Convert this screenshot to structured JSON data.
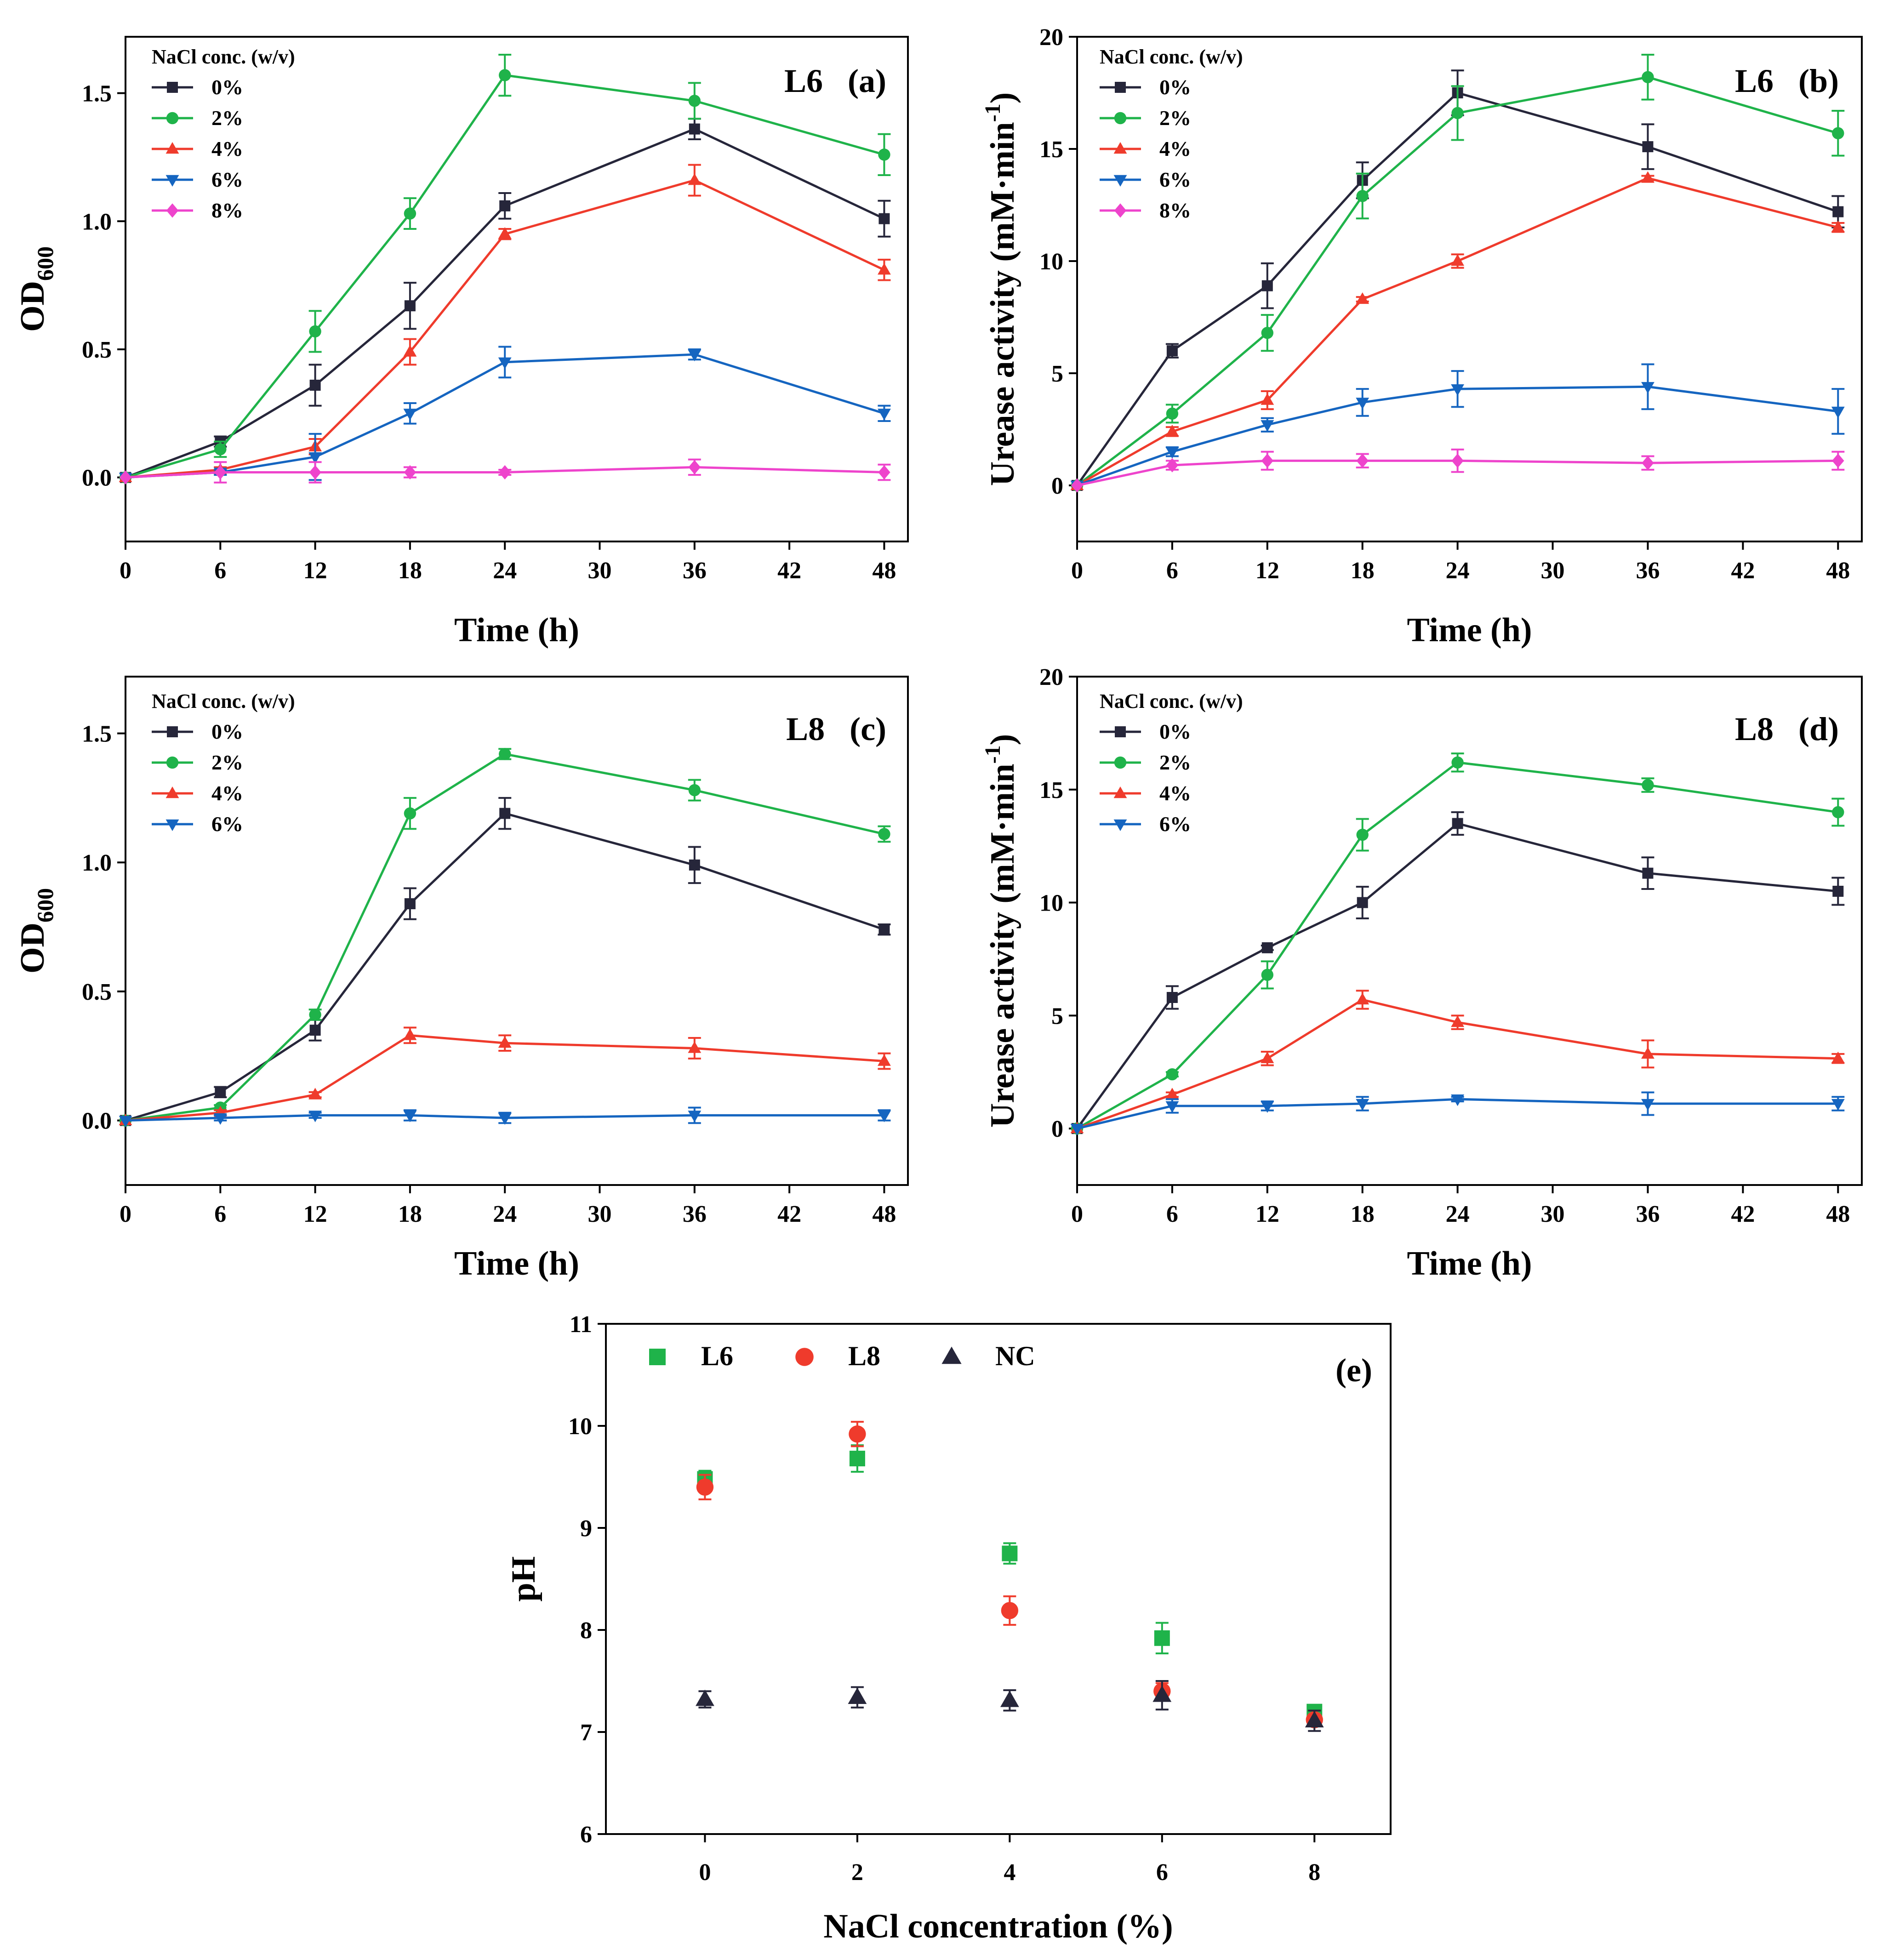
{
  "colors": {
    "black": "#26263a",
    "green": "#1fb34a",
    "red": "#ef3b2c",
    "blue": "#1565c0",
    "magenta": "#ee44cc",
    "e_green": "#1fb34a",
    "e_red": "#ef3b2c",
    "e_black": "#26263a"
  },
  "chart_data": [
    {
      "id": "a",
      "type": "line",
      "panel_label": "L6   (a)",
      "legend_title": "NaCl conc. (w/v)",
      "xlabel": "Time (h)",
      "ylabel": "OD",
      "ylabel_sub": "600",
      "xlim": [
        0,
        49.5
      ],
      "ylim": [
        -0.25,
        1.72
      ],
      "xticks": [
        0,
        6,
        12,
        18,
        24,
        30,
        36,
        42,
        48
      ],
      "yticks": [
        0.0,
        0.5,
        1.0,
        1.5
      ],
      "ytick_labels": [
        "0.0",
        "0.5",
        "1.0",
        "1.5"
      ],
      "x": [
        0,
        6,
        12,
        18,
        24,
        36,
        48
      ],
      "series": [
        {
          "name": "0%",
          "color": "black",
          "marker": "square",
          "values": [
            0,
            0.14,
            0.36,
            0.67,
            1.06,
            1.36,
            1.01
          ],
          "errors": [
            0,
            0.02,
            0.08,
            0.09,
            0.05,
            0.04,
            0.07
          ]
        },
        {
          "name": "2%",
          "color": "green",
          "marker": "circle",
          "values": [
            0,
            0.11,
            0.57,
            1.03,
            1.57,
            1.47,
            1.26
          ],
          "errors": [
            0,
            0.03,
            0.08,
            0.06,
            0.08,
            0.07,
            0.08
          ]
        },
        {
          "name": "4%",
          "color": "red",
          "marker": "triangle-up",
          "values": [
            0,
            0.03,
            0.12,
            0.49,
            0.95,
            1.16,
            0.81
          ],
          "errors": [
            0,
            0.01,
            0.03,
            0.05,
            0.02,
            0.06,
            0.04
          ]
        },
        {
          "name": "6%",
          "color": "blue",
          "marker": "triangle-down",
          "values": [
            0,
            0.02,
            0.08,
            0.25,
            0.45,
            0.48,
            0.25
          ],
          "errors": [
            0,
            0.01,
            0.09,
            0.04,
            0.06,
            0.02,
            0.03
          ]
        },
        {
          "name": "8%",
          "color": "magenta",
          "marker": "diamond",
          "values": [
            0,
            0.02,
            0.02,
            0.02,
            0.02,
            0.04,
            0.02
          ],
          "errors": [
            0,
            0.04,
            0.04,
            0.02,
            0.01,
            0.03,
            0.03
          ]
        }
      ]
    },
    {
      "id": "b",
      "type": "line",
      "panel_label": "L6   (b)",
      "legend_title": "NaCl conc. (w/v)",
      "xlabel": "Time (h)",
      "ylabel": "Urease activity (mM·min",
      "ylabel_sup": "-1",
      "ylabel_tail": ")",
      "xlim": [
        0,
        49.5
      ],
      "ylim": [
        -2.5,
        20
      ],
      "xticks": [
        0,
        6,
        12,
        18,
        24,
        30,
        36,
        42,
        48
      ],
      "yticks": [
        0,
        5,
        10,
        15,
        20
      ],
      "ytick_labels": [
        "0",
        "5",
        "10",
        "15",
        "20"
      ],
      "x": [
        0,
        6,
        12,
        18,
        24,
        36,
        48
      ],
      "series": [
        {
          "name": "0%",
          "color": "black",
          "marker": "square",
          "values": [
            0,
            6.0,
            8.9,
            13.6,
            17.5,
            15.1,
            12.2
          ],
          "errors": [
            0,
            0.3,
            1.0,
            0.8,
            1.0,
            1.0,
            0.7
          ]
        },
        {
          "name": "2%",
          "color": "green",
          "marker": "circle",
          "values": [
            0,
            3.2,
            6.8,
            12.9,
            16.6,
            18.2,
            15.7
          ],
          "errors": [
            0,
            0.4,
            0.8,
            1.0,
            1.2,
            1.0,
            1.0
          ]
        },
        {
          "name": "4%",
          "color": "red",
          "marker": "triangle-up",
          "values": [
            0,
            2.4,
            3.8,
            8.3,
            10.0,
            13.7,
            11.5
          ],
          "errors": [
            0,
            0.2,
            0.4,
            0.1,
            0.3,
            0.1,
            0.2
          ]
        },
        {
          "name": "6%",
          "color": "blue",
          "marker": "triangle-down",
          "values": [
            0,
            1.5,
            2.7,
            3.7,
            4.3,
            4.4,
            3.3
          ],
          "errors": [
            0,
            0.2,
            0.3,
            0.6,
            0.8,
            1.0,
            1.0
          ]
        },
        {
          "name": "8%",
          "color": "magenta",
          "marker": "diamond",
          "values": [
            0,
            0.9,
            1.1,
            1.1,
            1.1,
            1.0,
            1.1
          ],
          "errors": [
            0,
            0.2,
            0.4,
            0.3,
            0.5,
            0.3,
            0.4
          ]
        }
      ]
    },
    {
      "id": "c",
      "type": "line",
      "panel_label": "L8   (c)",
      "legend_title": "NaCl conc. (w/v)",
      "xlabel": "Time (h)",
      "ylabel": "OD",
      "ylabel_sub": "600",
      "xlim": [
        0,
        49.5
      ],
      "ylim": [
        -0.25,
        1.72
      ],
      "xticks": [
        0,
        6,
        12,
        18,
        24,
        30,
        36,
        42,
        48
      ],
      "yticks": [
        0.0,
        0.5,
        1.0,
        1.5
      ],
      "ytick_labels": [
        "0.0",
        "0.5",
        "1.0",
        "1.5"
      ],
      "x": [
        0,
        6,
        12,
        18,
        24,
        36,
        48
      ],
      "series": [
        {
          "name": "0%",
          "color": "black",
          "marker": "square",
          "values": [
            0,
            0.11,
            0.35,
            0.84,
            1.19,
            0.99,
            0.74
          ],
          "errors": [
            0,
            0.02,
            0.04,
            0.06,
            0.06,
            0.07,
            0.02
          ]
        },
        {
          "name": "2%",
          "color": "green",
          "marker": "circle",
          "values": [
            0,
            0.05,
            0.41,
            1.19,
            1.42,
            1.28,
            1.11
          ],
          "errors": [
            0,
            0.01,
            0.02,
            0.06,
            0.02,
            0.04,
            0.03
          ]
        },
        {
          "name": "4%",
          "color": "red",
          "marker": "triangle-up",
          "values": [
            0,
            0.03,
            0.1,
            0.33,
            0.3,
            0.28,
            0.23
          ],
          "errors": [
            0,
            0.01,
            0.01,
            0.03,
            0.03,
            0.04,
            0.03
          ]
        },
        {
          "name": "6%",
          "color": "blue",
          "marker": "triangle-down",
          "values": [
            0,
            0.01,
            0.02,
            0.02,
            0.01,
            0.02,
            0.02
          ],
          "errors": [
            0,
            0.01,
            0.01,
            0.02,
            0.02,
            0.03,
            0.02
          ]
        }
      ]
    },
    {
      "id": "d",
      "type": "line",
      "panel_label": "L8   (d)",
      "legend_title": "NaCl conc. (w/v)",
      "xlabel": "Time (h)",
      "ylabel": "Urease activity (mM·min",
      "ylabel_sup": "-1",
      "ylabel_tail": ")",
      "xlim": [
        0,
        49.5
      ],
      "ylim": [
        -2.5,
        20
      ],
      "xticks": [
        0,
        6,
        12,
        18,
        24,
        30,
        36,
        42,
        48
      ],
      "yticks": [
        0,
        5,
        10,
        15,
        20
      ],
      "ytick_labels": [
        "0",
        "5",
        "10",
        "15",
        "20"
      ],
      "x": [
        0,
        6,
        12,
        18,
        24,
        36,
        48
      ],
      "series": [
        {
          "name": "0%",
          "color": "black",
          "marker": "square",
          "values": [
            0,
            5.8,
            8.0,
            10.0,
            13.5,
            11.3,
            10.5
          ],
          "errors": [
            0,
            0.5,
            0.1,
            0.7,
            0.5,
            0.7,
            0.6
          ]
        },
        {
          "name": "2%",
          "color": "green",
          "marker": "circle",
          "values": [
            0,
            2.4,
            6.8,
            13.0,
            16.2,
            15.2,
            14.0
          ],
          "errors": [
            0,
            0.1,
            0.6,
            0.7,
            0.4,
            0.3,
            0.6
          ]
        },
        {
          "name": "4%",
          "color": "red",
          "marker": "triangle-up",
          "values": [
            0,
            1.5,
            3.1,
            5.7,
            4.7,
            3.3,
            3.1
          ],
          "errors": [
            0,
            0.1,
            0.3,
            0.4,
            0.3,
            0.6,
            0.2
          ]
        },
        {
          "name": "6%",
          "color": "blue",
          "marker": "triangle-down",
          "values": [
            0,
            1.0,
            1.0,
            1.1,
            1.3,
            1.1,
            1.1
          ],
          "errors": [
            0,
            0.3,
            0.2,
            0.3,
            0.1,
            0.5,
            0.3
          ]
        }
      ]
    },
    {
      "id": "e",
      "type": "scatter",
      "panel_label": "(e)",
      "xlabel": "NaCl concentration (%)",
      "ylabel": "pH",
      "xlim": [
        -1.3,
        9.0
      ],
      "ylim": [
        6,
        11
      ],
      "xticks": [
        0,
        2,
        4,
        6,
        8
      ],
      "yticks": [
        6,
        7,
        8,
        9,
        10,
        11
      ],
      "ytick_labels": [
        "6",
        "7",
        "8",
        "9",
        "10",
        "11"
      ],
      "x": [
        0,
        2,
        4,
        6,
        8
      ],
      "series": [
        {
          "name": "L6",
          "color": "e_green",
          "marker": "square",
          "values": [
            9.48,
            9.68,
            8.75,
            7.92,
            7.2
          ],
          "errors": [
            0.08,
            0.13,
            0.1,
            0.15,
            0.05
          ]
        },
        {
          "name": "L8",
          "color": "e_red",
          "marker": "circle",
          "values": [
            9.4,
            9.92,
            8.19,
            7.4,
            7.12
          ],
          "errors": [
            0.12,
            0.12,
            0.14,
            0.08,
            0.05
          ]
        },
        {
          "name": "NC",
          "color": "e_black",
          "marker": "triangle-up",
          "values": [
            7.32,
            7.34,
            7.31,
            7.36,
            7.11
          ],
          "errors": [
            0.08,
            0.1,
            0.1,
            0.14,
            0.1
          ]
        }
      ]
    }
  ]
}
